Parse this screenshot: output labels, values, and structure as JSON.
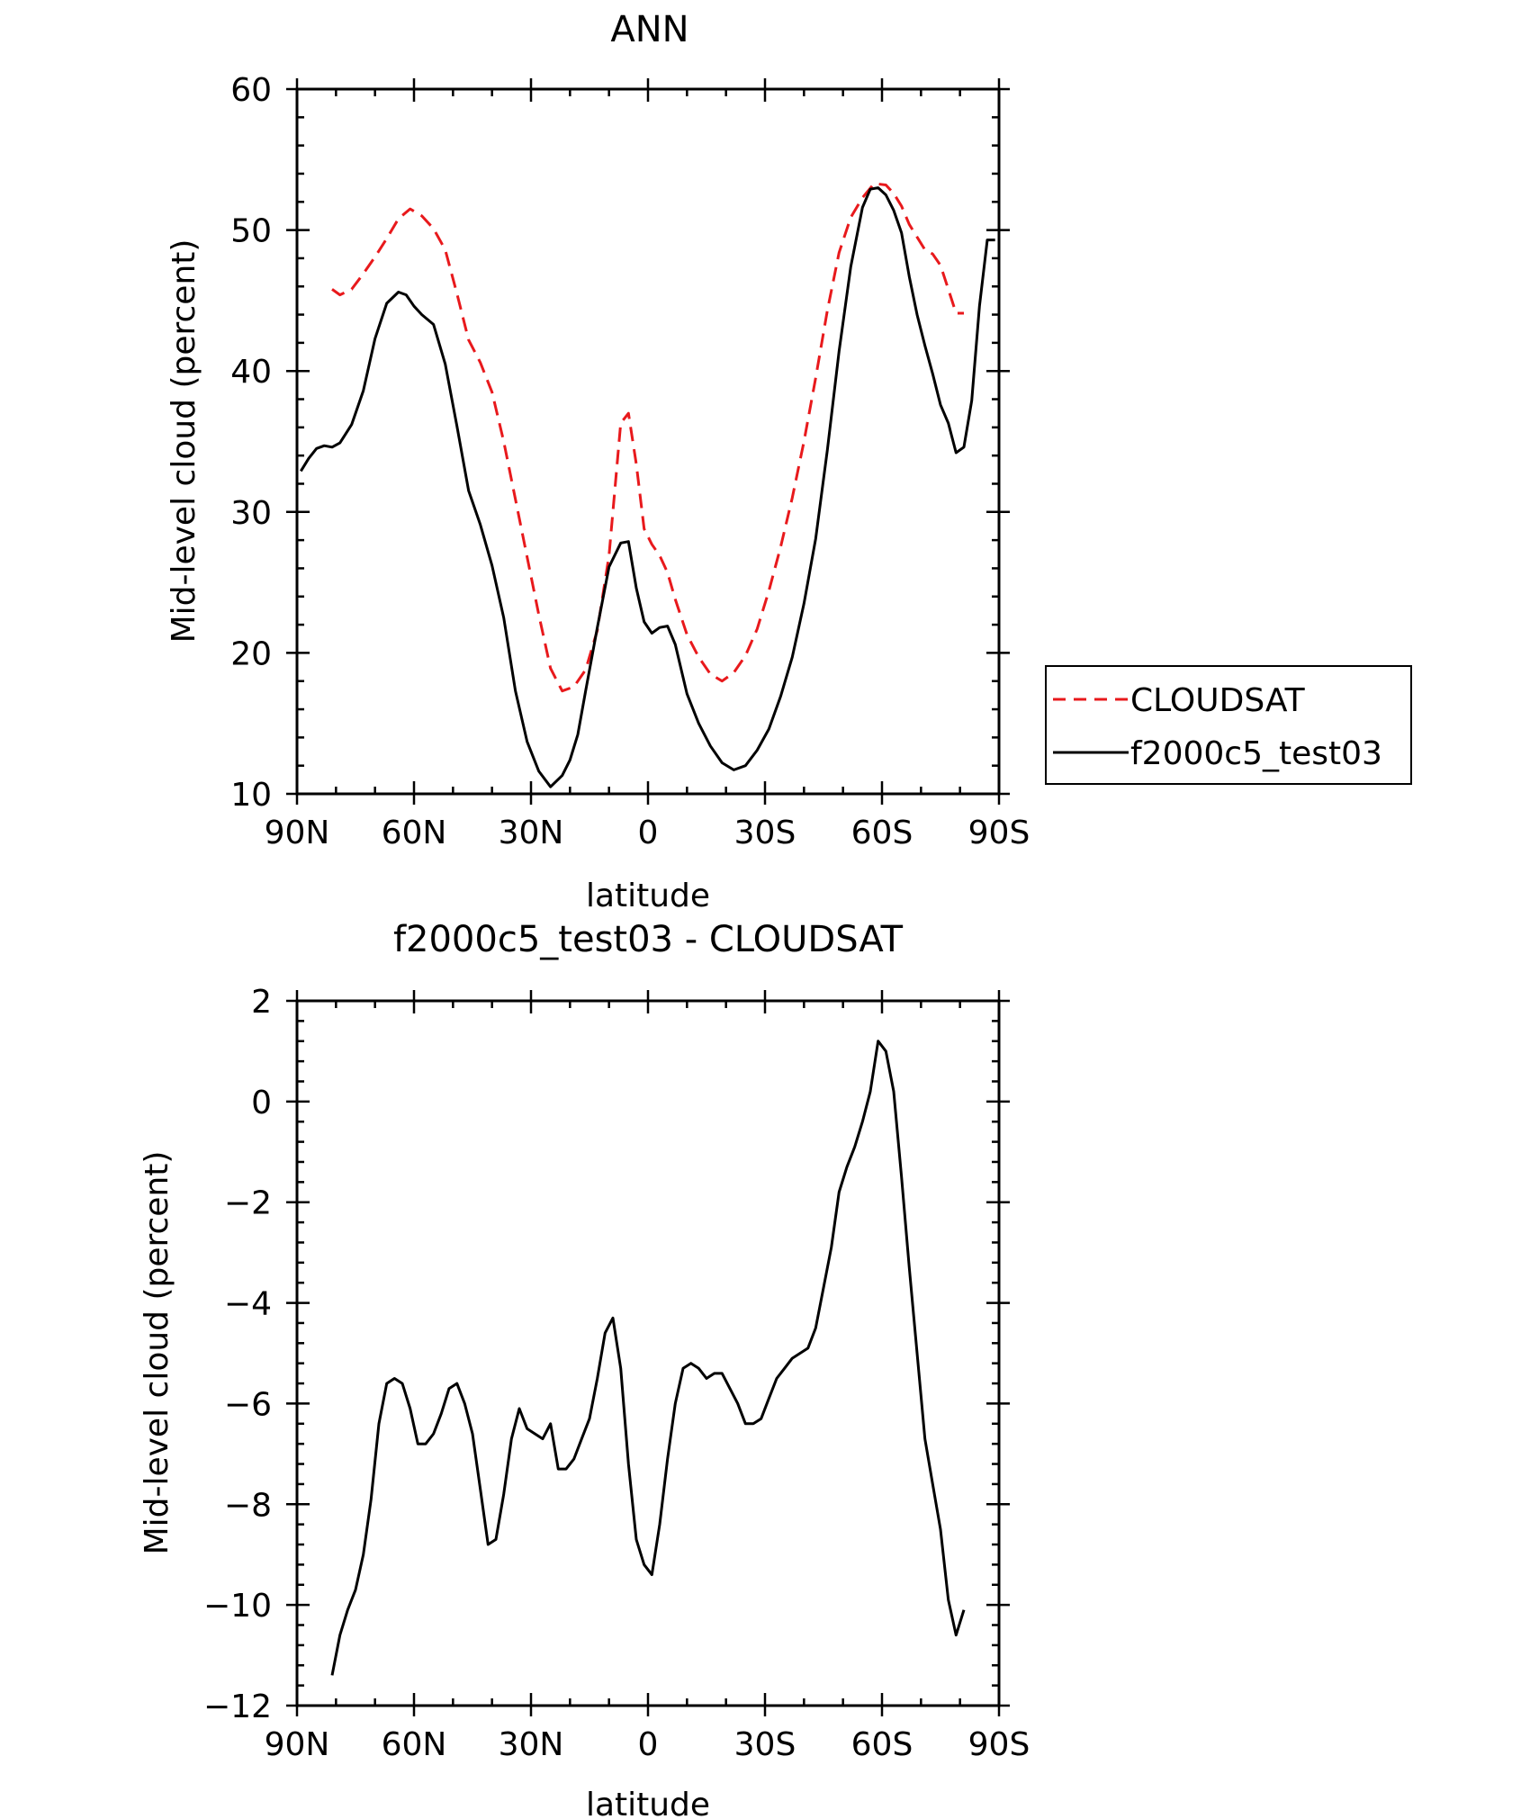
{
  "chart_data": [
    {
      "type": "line",
      "title": "ANN",
      "xlabel": "latitude",
      "ylabel": "Mid-level cloud (percent)",
      "xlim": [
        -90,
        90
      ],
      "ylim": [
        10,
        60
      ],
      "x_ticks": [
        -90,
        -60,
        -30,
        0,
        30,
        60,
        90
      ],
      "x_tick_labels": [
        "90N",
        "60N",
        "30N",
        "0",
        "30S",
        "60S",
        "90S"
      ],
      "y_ticks": [
        10,
        20,
        30,
        40,
        50,
        60
      ],
      "y_tick_labels": [
        "10",
        "20",
        "30",
        "40",
        "50",
        "60"
      ],
      "grid": false,
      "legend_position": "right, outside plot",
      "series": [
        {
          "name": "CLOUDSAT",
          "color": "#e8191c",
          "dash": "dashed",
          "x": [
            -81,
            -79,
            -76,
            -73,
            -70,
            -67,
            -64,
            -61,
            -58,
            -55,
            -52,
            -49,
            -46,
            -43,
            -40,
            -37,
            -34,
            -31,
            -28,
            -25,
            -22,
            -19,
            -16,
            -13,
            -10,
            -7,
            -5,
            -3,
            -1,
            1,
            3,
            5,
            7,
            10,
            13,
            16,
            19,
            22,
            25,
            28,
            31,
            34,
            37,
            40,
            43,
            46,
            49,
            52,
            55,
            58,
            61,
            63,
            65,
            67,
            69,
            71,
            73,
            75,
            77,
            79,
            81
          ],
          "values": [
            45.8,
            45.4,
            45.8,
            46.9,
            48.1,
            49.4,
            50.8,
            51.5,
            51.0,
            50.1,
            48.6,
            45.5,
            42.2,
            40.6,
            38.5,
            35.0,
            30.9,
            26.8,
            22.7,
            18.9,
            17.3,
            17.6,
            18.8,
            21.6,
            26.9,
            36.3,
            37.0,
            33.4,
            28.8,
            27.7,
            26.9,
            25.7,
            23.8,
            21.3,
            19.7,
            18.5,
            18.0,
            18.6,
            19.8,
            21.7,
            24.4,
            27.5,
            31.0,
            35.0,
            39.5,
            44.3,
            48.4,
            50.9,
            52.3,
            53.3,
            53.2,
            52.6,
            51.7,
            50.4,
            49.5,
            48.6,
            48.3,
            47.5,
            45.8,
            44.1,
            44.1
          ]
        },
        {
          "name": "f2000c5_test03",
          "color": "#000000",
          "dash": "solid",
          "x": [
            -89,
            -87,
            -85,
            -83,
            -81,
            -79,
            -76,
            -73,
            -70,
            -67,
            -64,
            -62,
            -60,
            -58,
            -55,
            -52,
            -49,
            -46,
            -43,
            -40,
            -37,
            -34,
            -31,
            -28,
            -25,
            -22,
            -20,
            -18,
            -16,
            -13,
            -10,
            -7,
            -5,
            -3,
            -1,
            1,
            3,
            5,
            7,
            10,
            13,
            16,
            19,
            22,
            25,
            28,
            31,
            34,
            37,
            40,
            43,
            46,
            49,
            52,
            55,
            57,
            59,
            61,
            63,
            65,
            67,
            69,
            71,
            73,
            75,
            77,
            79,
            81,
            83,
            85,
            87,
            89
          ],
          "values": [
            32.9,
            33.8,
            34.5,
            34.7,
            34.6,
            34.9,
            36.2,
            38.6,
            42.3,
            44.8,
            45.6,
            45.4,
            44.6,
            44.0,
            43.3,
            40.5,
            36.1,
            31.5,
            29.1,
            26.2,
            22.5,
            17.3,
            13.7,
            11.6,
            10.5,
            11.3,
            12.4,
            14.2,
            17.3,
            21.8,
            26.1,
            27.8,
            27.9,
            24.6,
            22.2,
            21.4,
            21.8,
            21.9,
            20.6,
            17.1,
            15.0,
            13.4,
            12.2,
            11.7,
            12.0,
            13.1,
            14.6,
            16.9,
            19.7,
            23.5,
            28.1,
            34.4,
            41.4,
            47.4,
            51.6,
            52.9,
            53.0,
            52.5,
            51.4,
            49.8,
            46.7,
            44.0,
            41.8,
            39.8,
            37.6,
            36.3,
            34.2,
            34.6,
            37.9,
            44.6,
            49.3,
            49.3
          ]
        }
      ]
    },
    {
      "type": "line",
      "title": "f2000c5_test03 - CLOUDSAT",
      "xlabel": "latitude",
      "ylabel": "Mid-level cloud (percent)",
      "xlim": [
        -90,
        90
      ],
      "ylim": [
        -12,
        2
      ],
      "x_ticks": [
        -90,
        -60,
        -30,
        0,
        30,
        60,
        90
      ],
      "x_tick_labels": [
        "90N",
        "60N",
        "30N",
        "0",
        "30S",
        "60S",
        "90S"
      ],
      "y_ticks": [
        -12,
        -10,
        -8,
        -6,
        -4,
        -2,
        0,
        2
      ],
      "y_tick_labels": [
        "−12",
        "−10",
        "−8",
        "−6",
        "−4",
        "−2",
        "0",
        "2"
      ],
      "grid": false,
      "series": [
        {
          "color": "#000000",
          "dash": "solid",
          "x": [
            -81,
            -79,
            -77,
            -75,
            -73,
            -71,
            -69,
            -67,
            -65,
            -63,
            -61,
            -59,
            -57,
            -55,
            -53,
            -51,
            -49,
            -47,
            -45,
            -43,
            -41,
            -39,
            -37,
            -35,
            -33,
            -31,
            -29,
            -27,
            -25,
            -23,
            -21,
            -19,
            -17,
            -15,
            -13,
            -11,
            -9,
            -7,
            -5,
            -3,
            -1,
            1,
            3,
            5,
            7,
            9,
            11,
            13,
            15,
            17,
            19,
            21,
            23,
            25,
            27,
            29,
            31,
            33,
            35,
            37,
            39,
            41,
            43,
            45,
            47,
            49,
            51,
            53,
            55,
            57,
            59,
            61,
            63,
            65,
            67,
            69,
            71,
            73,
            75,
            77,
            79,
            81
          ],
          "values": [
            -11.4,
            -10.6,
            -10.1,
            -9.7,
            -9.0,
            -7.9,
            -6.4,
            -5.6,
            -5.5,
            -5.6,
            -6.1,
            -6.8,
            -6.8,
            -6.6,
            -6.2,
            -5.7,
            -5.6,
            -6.0,
            -6.6,
            -7.7,
            -8.8,
            -8.7,
            -7.8,
            -6.7,
            -6.1,
            -6.5,
            -6.6,
            -6.7,
            -6.4,
            -7.3,
            -7.3,
            -7.1,
            -6.7,
            -6.3,
            -5.5,
            -4.6,
            -4.3,
            -5.3,
            -7.2,
            -8.7,
            -9.2,
            -9.4,
            -8.4,
            -7.1,
            -6.0,
            -5.3,
            -5.2,
            -5.3,
            -5.5,
            -5.4,
            -5.4,
            -5.7,
            -6.0,
            -6.4,
            -6.4,
            -6.3,
            -5.9,
            -5.5,
            -5.3,
            -5.1,
            -5.0,
            -4.9,
            -4.5,
            -3.7,
            -2.9,
            -1.8,
            -1.3,
            -0.9,
            -0.4,
            0.2,
            1.2,
            1.0,
            0.2,
            -1.5,
            -3.3,
            -5.0,
            -6.7,
            -7.6,
            -8.5,
            -9.9,
            -10.6,
            -10.1
          ]
        }
      ]
    }
  ]
}
